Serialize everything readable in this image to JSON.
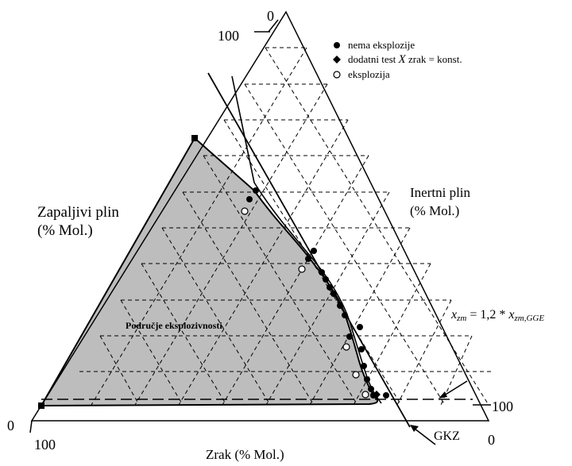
{
  "axes": {
    "flammable_label_line1": "Zapaljivi plin",
    "flammable_label_line2": "(% Mol.)",
    "inert_label_line1": "Inertni plin",
    "inert_label_line2": "(% Mol.)",
    "air_label": "Zrak (% Mol.)",
    "tick_top_0": "0",
    "tick_top_100": "100",
    "tick_left_0": "0",
    "tick_left_100": "100",
    "tick_right_100": "100",
    "tick_right_0": "0"
  },
  "legend": [
    {
      "symbol": "filled-circle",
      "label": "nema eksplozije"
    },
    {
      "symbol": "filled-diamond",
      "label_prefix": "dodatni test ",
      "label_var": "X",
      "label_suffix": " zrak = konst."
    },
    {
      "symbol": "open-circle",
      "label": "eksplozija"
    }
  ],
  "region_label": "Područje eksplozivnosti",
  "annotations": {
    "limit_var": "x",
    "limit_sub": "zm",
    "limit_mid": " = 1,2 * ",
    "limit_var2": "x",
    "limit_sub2": "zm,GGE",
    "gkz": "GKZ"
  },
  "colors": {
    "region": "#bdbdbd",
    "lines": "#000000"
  }
}
